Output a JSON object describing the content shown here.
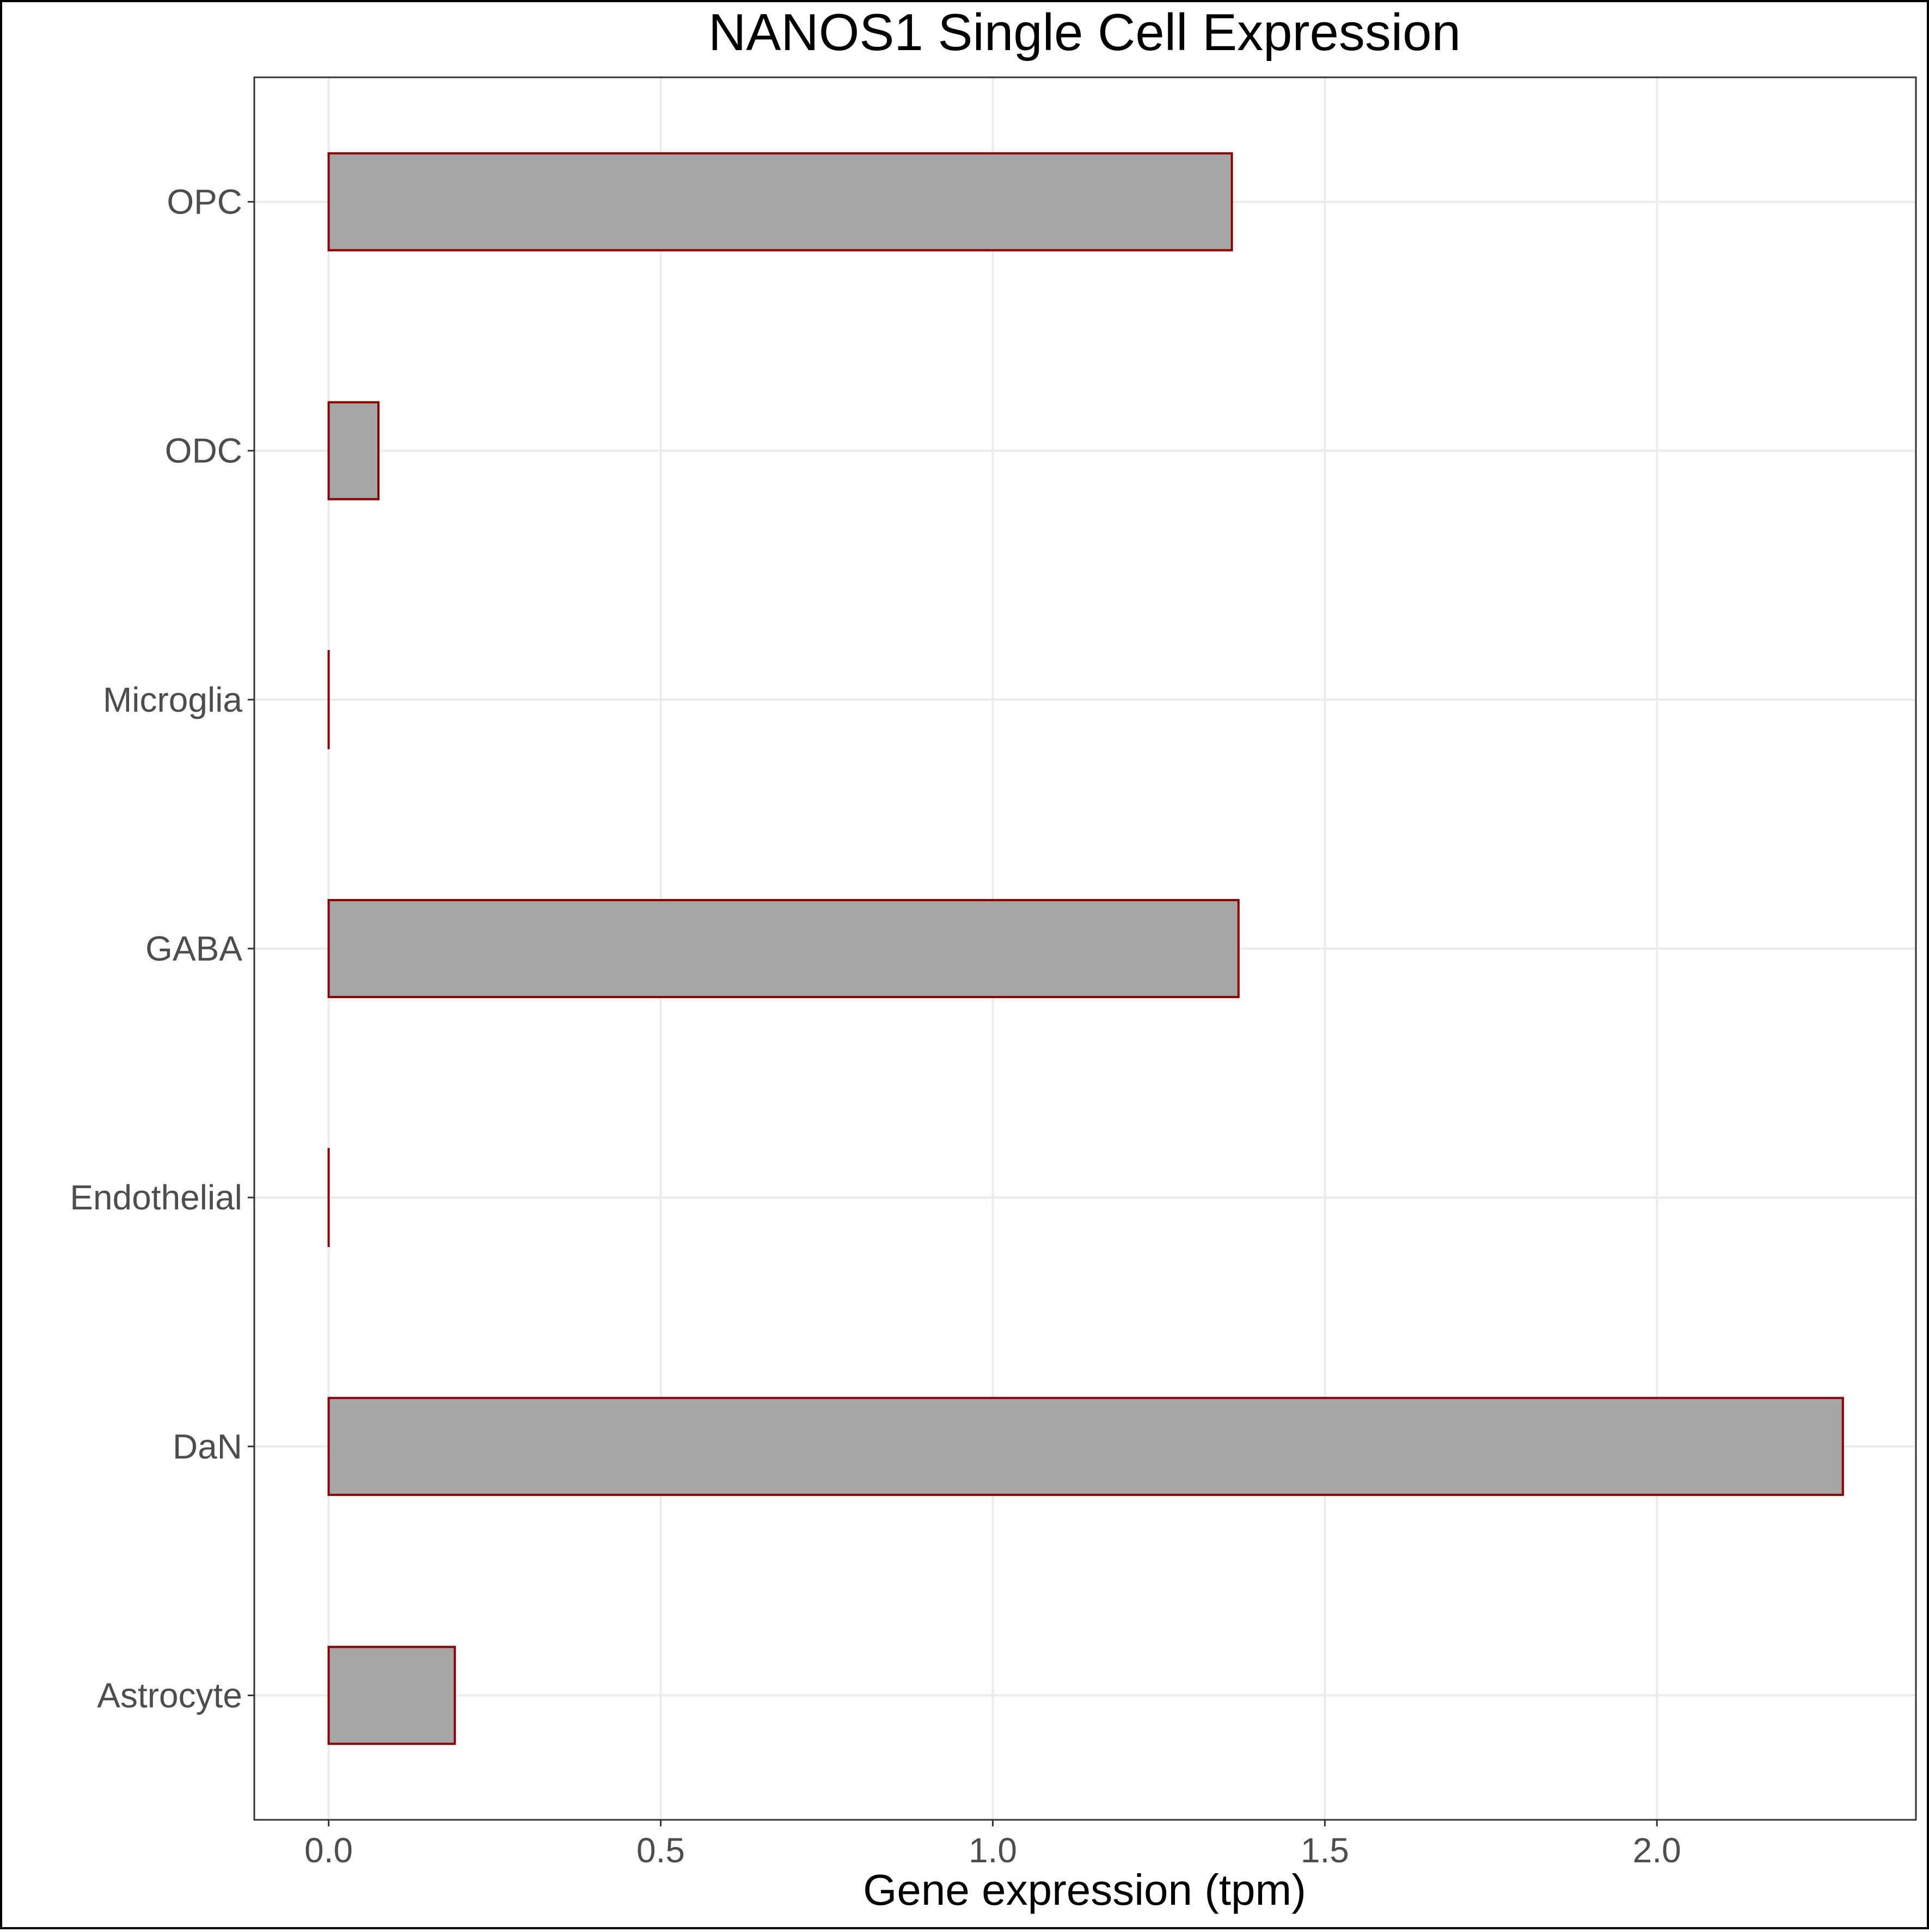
{
  "chart_data": {
    "type": "bar",
    "orientation": "horizontal",
    "title": "NANOS1 Single Cell Expression",
    "xlabel": "Gene expression (tpm)",
    "ylabel": "",
    "categories": [
      "OPC",
      "ODC",
      "Microglia",
      "GABA",
      "Endothelial",
      "DaN",
      "Astrocyte"
    ],
    "values": [
      1.36,
      0.075,
      0.0,
      1.37,
      0.0,
      2.28,
      0.19
    ],
    "xlim": [
      -0.112,
      2.39
    ],
    "xticks": [
      0.0,
      0.5,
      1.0,
      1.5,
      2.0
    ],
    "xtick_labels": [
      "0.0",
      "0.5",
      "1.0",
      "1.5",
      "2.0"
    ],
    "grid": true,
    "legend": "none",
    "colors": {
      "bar_fill": "#a6a6a6",
      "bar_outline": "#8b0000",
      "grid": "#ebebeb",
      "tick_text": "#4d4d4d"
    }
  }
}
